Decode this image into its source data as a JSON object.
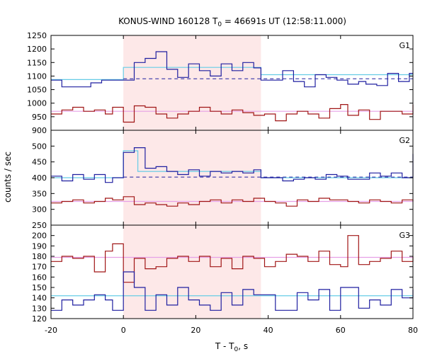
{
  "chart_data": {
    "type": "line",
    "title_main": "KONUS-WIND 160128 T",
    "title_sub": "0",
    "title_rest": " = 46691s UT (12:58:11.000)",
    "xlabel_main": "T - T",
    "xlabel_sub": "0",
    "xlabel_rest": ", s",
    "ylabel": "counts / sec",
    "xlim": [
      -20,
      80
    ],
    "xticks": [
      -20,
      0,
      20,
      40,
      60,
      80
    ],
    "highlight_interval": [
      0,
      38
    ],
    "colors": {
      "signal": "#1f1fa0",
      "background": "#a01515",
      "fit": "#66cce6",
      "bg_fit": "#e6a0e6",
      "shade": "#fde8e8"
    },
    "panels": [
      {
        "name": "G1",
        "ylim": [
          900,
          1250
        ],
        "yticks": [
          900,
          950,
          1000,
          1050,
          1100,
          1150,
          1200,
          1250
        ],
        "signal_x": [
          -20,
          -17,
          -12,
          -9,
          -6,
          0,
          3,
          6,
          9,
          12,
          15,
          18,
          21,
          24,
          27,
          30,
          33,
          36,
          38,
          41,
          44,
          47,
          50,
          53,
          56,
          59,
          62,
          65,
          67,
          70,
          73,
          76,
          79,
          80
        ],
        "signal_y": [
          1085,
          1060,
          1060,
          1075,
          1085,
          1085,
          1150,
          1165,
          1190,
          1125,
          1095,
          1145,
          1120,
          1100,
          1145,
          1120,
          1150,
          1130,
          1085,
          1085,
          1120,
          1080,
          1060,
          1105,
          1095,
          1085,
          1070,
          1080,
          1070,
          1065,
          1110,
          1080,
          1110,
          1110
        ],
        "fit_x": [
          -20,
          0,
          0,
          38,
          38,
          80
        ],
        "fit_y": [
          1087,
          1087,
          1132,
          1132,
          1105,
          1105
        ],
        "dashed_y": 1090,
        "dashed_from": 0,
        "bg_x": [
          -20,
          -17,
          -14,
          -11,
          -8,
          -5,
          -3,
          0,
          3,
          6,
          9,
          12,
          15,
          18,
          21,
          24,
          27,
          30,
          33,
          36,
          39,
          42,
          45,
          48,
          51,
          54,
          57,
          60,
          62,
          65,
          68,
          71,
          74,
          77,
          80
        ],
        "bg_y": [
          960,
          975,
          985,
          970,
          975,
          960,
          985,
          930,
          990,
          985,
          960,
          945,
          960,
          970,
          985,
          970,
          960,
          975,
          965,
          955,
          960,
          935,
          960,
          970,
          960,
          945,
          980,
          995,
          955,
          975,
          940,
          970,
          970,
          960,
          995
        ],
        "bg_fit_y": 970
      },
      {
        "name": "G2",
        "ylim": [
          250,
          550
        ],
        "yticks": [
          250,
          300,
          350,
          400,
          450,
          500
        ],
        "signal_x": [
          -20,
          -17,
          -14,
          -11,
          -8,
          -5,
          -3,
          0,
          3,
          6,
          9,
          12,
          15,
          18,
          21,
          24,
          27,
          30,
          33,
          36,
          38,
          41,
          44,
          47,
          50,
          53,
          56,
          59,
          62,
          65,
          68,
          71,
          74,
          77,
          80
        ],
        "signal_y": [
          405,
          390,
          410,
          395,
          410,
          385,
          400,
          480,
          495,
          430,
          435,
          420,
          410,
          425,
          405,
          420,
          415,
          420,
          415,
          425,
          400,
          400,
          390,
          395,
          400,
          395,
          410,
          405,
          395,
          395,
          415,
          405,
          415,
          400,
          475
        ],
        "fit_x": [
          -20,
          0,
          0,
          4,
          4,
          38,
          38,
          80
        ],
        "fit_y": [
          400,
          400,
          485,
          485,
          420,
          420,
          400,
          400
        ],
        "dashed_y": 402,
        "dashed_from": 0,
        "bg_x": [
          -20,
          -17,
          -14,
          -11,
          -8,
          -5,
          -3,
          0,
          3,
          6,
          9,
          12,
          15,
          18,
          21,
          24,
          27,
          30,
          33,
          36,
          39,
          42,
          45,
          48,
          51,
          54,
          57,
          60,
          62,
          65,
          68,
          71,
          74,
          77,
          80
        ],
        "bg_y": [
          320,
          325,
          330,
          320,
          325,
          335,
          330,
          340,
          315,
          320,
          315,
          310,
          320,
          315,
          325,
          330,
          320,
          330,
          325,
          335,
          325,
          320,
          310,
          330,
          325,
          335,
          330,
          330,
          325,
          320,
          330,
          325,
          320,
          330,
          325
        ],
        "bg_fit_y": 325
      },
      {
        "name": "G3",
        "ylim": [
          120,
          210
        ],
        "yticks": [
          120,
          130,
          140,
          150,
          160,
          170,
          180,
          190,
          200
        ],
        "signal_x": [
          -20,
          -17,
          -14,
          -11,
          -8,
          -5,
          -3,
          0,
          3,
          6,
          9,
          12,
          15,
          18,
          21,
          24,
          27,
          30,
          33,
          36,
          39,
          42,
          45,
          48,
          51,
          54,
          57,
          60,
          62,
          65,
          68,
          71,
          74,
          77,
          80
        ],
        "signal_y": [
          128,
          138,
          133,
          138,
          143,
          138,
          128,
          165,
          150,
          128,
          143,
          133,
          150,
          138,
          133,
          128,
          145,
          133,
          148,
          143,
          143,
          128,
          128,
          145,
          138,
          148,
          128,
          150,
          150,
          130,
          138,
          133,
          148,
          140,
          148
        ],
        "fit_y": 142,
        "bg_x": [
          -20,
          -17,
          -14,
          -11,
          -8,
          -5,
          -3,
          0,
          3,
          6,
          9,
          12,
          15,
          18,
          21,
          24,
          27,
          30,
          33,
          36,
          39,
          42,
          45,
          48,
          51,
          54,
          57,
          60,
          62,
          65,
          68,
          71,
          74,
          77,
          80
        ],
        "bg_y": [
          175,
          180,
          178,
          180,
          165,
          185,
          192,
          155,
          178,
          168,
          170,
          178,
          180,
          175,
          180,
          170,
          178,
          168,
          180,
          178,
          170,
          175,
          182,
          180,
          175,
          185,
          172,
          170,
          200,
          172,
          175,
          178,
          185,
          175,
          180
        ],
        "bg_fit_y": 179
      }
    ]
  }
}
